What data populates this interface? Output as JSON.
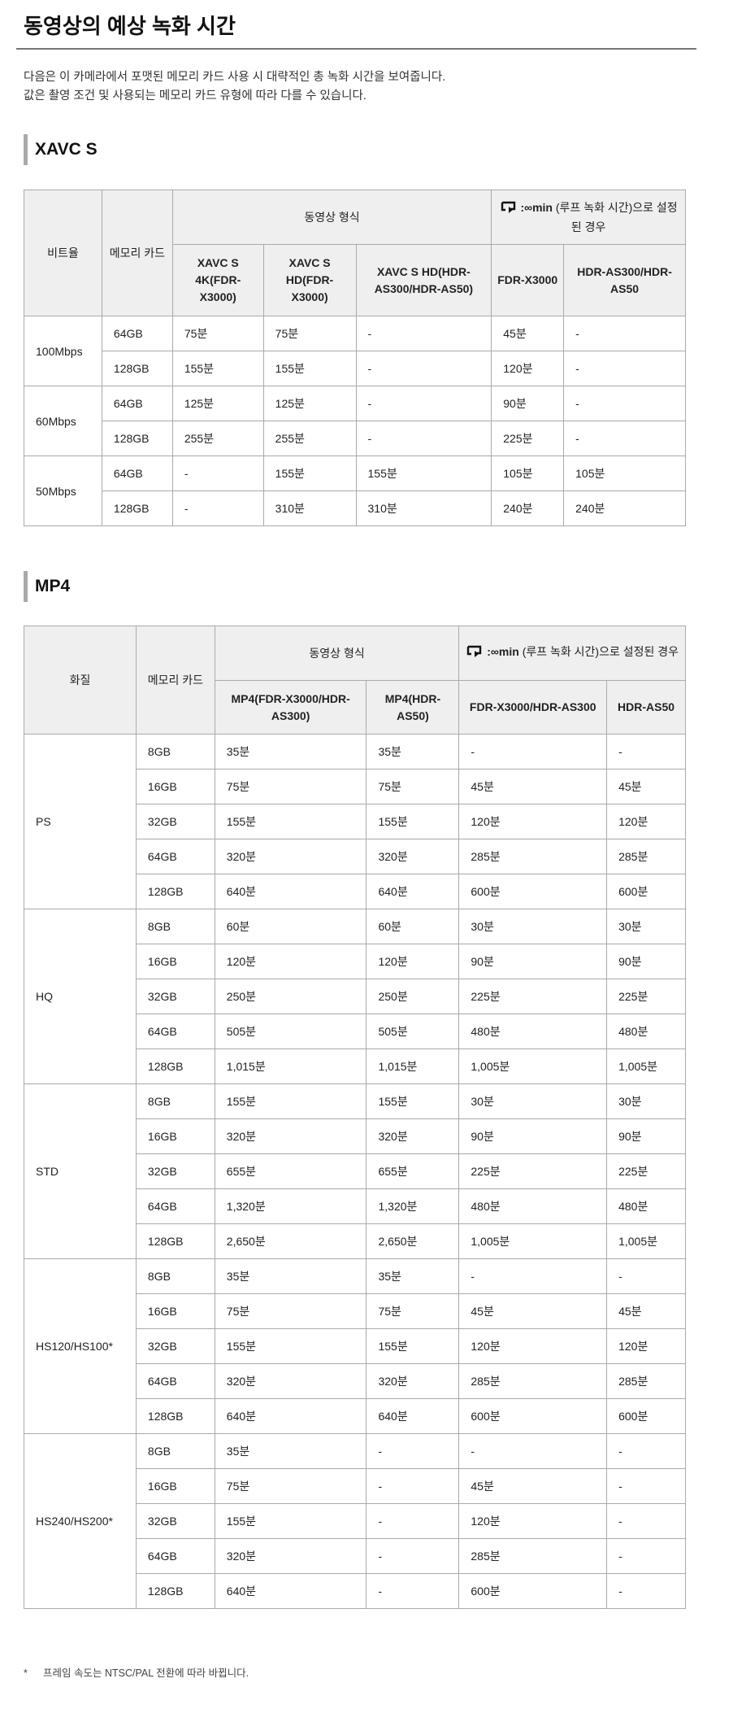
{
  "title": "동영상의 예상 녹화 시간",
  "description": [
    "다음은 이 카메라에서 포맷된 메모리 카드 사용 시 대략적인 총 녹화 시간을 보여줍니다.",
    "값은 촬영 조건 및 사용되는 메모리 카드 유형에 따라 다를 수 있습니다."
  ],
  "loop_icon": "loop-recording-icon",
  "xavc": {
    "heading": "XAVC S",
    "h_bitrate": "비트율",
    "h_card": "메모리 카드",
    "h_format": "동영상 형식",
    "h_loop_prefix": ":∞min",
    "h_loop_suffix": "(루프 녹화 시간)으로 설정된 경우",
    "subheaders": [
      "XAVC S 4K(FDR-X3000)",
      "XAVC S HD(FDR-X3000)",
      "XAVC S HD(HDR-AS300/HDR-AS50)",
      "FDR-X3000",
      "HDR-AS300/HDR-AS50"
    ],
    "groups": [
      {
        "label": "100Mbps",
        "rows": [
          [
            "64GB",
            "75분",
            "75분",
            "-",
            "45분",
            "-"
          ],
          [
            "128GB",
            "155분",
            "155분",
            "-",
            "120분",
            "-"
          ]
        ]
      },
      {
        "label": "60Mbps",
        "rows": [
          [
            "64GB",
            "125분",
            "125분",
            "-",
            "90분",
            "-"
          ],
          [
            "128GB",
            "255분",
            "255분",
            "-",
            "225분",
            "-"
          ]
        ]
      },
      {
        "label": "50Mbps",
        "rows": [
          [
            "64GB",
            "-",
            "155분",
            "155분",
            "105분",
            "105분"
          ],
          [
            "128GB",
            "-",
            "310분",
            "310분",
            "240분",
            "240분"
          ]
        ]
      }
    ]
  },
  "mp4": {
    "heading": "MP4",
    "h_quality": "화질",
    "h_card": "메모리 카드",
    "h_format": "동영상 형식",
    "h_loop_prefix": ":∞min",
    "h_loop_suffix": "(루프 녹화 시간)으로 설정된 경우",
    "subheaders": [
      "MP4(FDR-X3000/HDR-AS300)",
      "MP4(HDR-AS50)",
      "FDR-X3000/HDR-AS300",
      "HDR-AS50"
    ],
    "groups": [
      {
        "label": "PS",
        "rows": [
          [
            "8GB",
            "35분",
            "35분",
            "-",
            "-"
          ],
          [
            "16GB",
            "75분",
            "75분",
            "45분",
            "45분"
          ],
          [
            "32GB",
            "155분",
            "155분",
            "120분",
            "120분"
          ],
          [
            "64GB",
            "320분",
            "320분",
            "285분",
            "285분"
          ],
          [
            "128GB",
            "640분",
            "640분",
            "600분",
            "600분"
          ]
        ]
      },
      {
        "label": "HQ",
        "rows": [
          [
            "8GB",
            "60분",
            "60분",
            "30분",
            "30분"
          ],
          [
            "16GB",
            "120분",
            "120분",
            "90분",
            "90분"
          ],
          [
            "32GB",
            "250분",
            "250분",
            "225분",
            "225분"
          ],
          [
            "64GB",
            "505분",
            "505분",
            "480분",
            "480분"
          ],
          [
            "128GB",
            "1,015분",
            "1,015분",
            "1,005분",
            "1,005분"
          ]
        ]
      },
      {
        "label": "STD",
        "rows": [
          [
            "8GB",
            "155분",
            "155분",
            "30분",
            "30분"
          ],
          [
            "16GB",
            "320분",
            "320분",
            "90분",
            "90분"
          ],
          [
            "32GB",
            "655분",
            "655분",
            "225분",
            "225분"
          ],
          [
            "64GB",
            "1,320분",
            "1,320분",
            "480분",
            "480분"
          ],
          [
            "128GB",
            "2,650분",
            "2,650분",
            "1,005분",
            "1,005분"
          ]
        ]
      },
      {
        "label": "HS120/HS100*",
        "rows": [
          [
            "8GB",
            "35분",
            "35분",
            "-",
            "-"
          ],
          [
            "16GB",
            "75분",
            "75분",
            "45분",
            "45분"
          ],
          [
            "32GB",
            "155분",
            "155분",
            "120분",
            "120분"
          ],
          [
            "64GB",
            "320분",
            "320분",
            "285분",
            "285분"
          ],
          [
            "128GB",
            "640분",
            "640분",
            "600분",
            "600분"
          ]
        ]
      },
      {
        "label": "HS240/HS200*",
        "rows": [
          [
            "8GB",
            "35분",
            "-",
            "-",
            "-"
          ],
          [
            "16GB",
            "75분",
            "-",
            "45분",
            "-"
          ],
          [
            "32GB",
            "155분",
            "-",
            "120분",
            "-"
          ],
          [
            "64GB",
            "320분",
            "-",
            "285분",
            "-"
          ],
          [
            "128GB",
            "640분",
            "-",
            "600분",
            "-"
          ]
        ]
      }
    ]
  },
  "footnote": {
    "mark": "*",
    "text": "프레임 속도는 NTSC/PAL 전환에 따라 바뀝니다."
  }
}
